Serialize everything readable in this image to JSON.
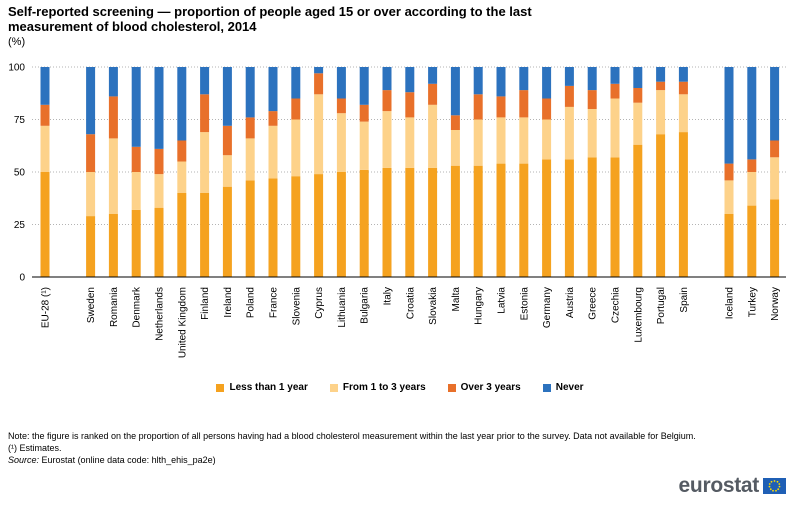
{
  "header": {
    "title": "Self-reported screening — proportion of people aged 15 or over according to the last measurement of blood cholesterol, 2014",
    "unit": "(%)"
  },
  "colors": {
    "less_than_1_year": "#f5a21f",
    "from_1_to_3_years": "#fdd28a",
    "over_3_years": "#e8702a",
    "never": "#2c72be",
    "grid": "#b3b3b3",
    "axis": "#000000",
    "logo_text": "#555b63",
    "logo_flag": "#1f5fb5"
  },
  "chart_data": {
    "type": "bar",
    "stacked": true,
    "title": "Self-reported screening — proportion of people aged 15 or over according to the last measurement of blood cholesterol, 2014",
    "ylabel": "(%)",
    "xlabel": "",
    "ylim": [
      0,
      100
    ],
    "yticks": [
      0,
      25,
      50,
      75,
      100
    ],
    "grid": true,
    "legend_position": "bottom-center",
    "groups": [
      [
        0
      ],
      [
        1,
        27
      ],
      [
        28,
        30
      ]
    ],
    "categories": [
      "EU-28 (¹)",
      "Sweden",
      "Romania",
      "Denmark",
      "Netherlands",
      "United Kingdom",
      "Finland",
      "Ireland",
      "Poland",
      "France",
      "Slovenia",
      "Cyprus",
      "Lithuania",
      "Bulgaria",
      "Italy",
      "Croatia",
      "Slovakia",
      "Malta",
      "Hungary",
      "Latvia",
      "Estonia",
      "Germany",
      "Austria",
      "Greece",
      "Czechia",
      "Luxembourg",
      "Portugal",
      "Spain",
      "Iceland",
      "Turkey",
      "Norway"
    ],
    "series": [
      {
        "name": "Less than 1 year",
        "values": [
          50,
          29,
          30,
          32,
          33,
          40,
          40,
          43,
          46,
          47,
          48,
          49,
          50,
          51,
          52,
          52,
          52,
          53,
          53,
          54,
          54,
          56,
          56,
          57,
          57,
          63,
          68,
          69,
          30,
          34,
          37
        ]
      },
      {
        "name": "From 1 to 3 years",
        "values": [
          22,
          21,
          36,
          18,
          16,
          15,
          29,
          15,
          20,
          25,
          27,
          38,
          28,
          23,
          27,
          24,
          30,
          17,
          22,
          22,
          22,
          19,
          25,
          23,
          28,
          20,
          21,
          18,
          16,
          16,
          20
        ]
      },
      {
        "name": "Over 3 years",
        "values": [
          10,
          18,
          20,
          12,
          12,
          10,
          18,
          14,
          10,
          7,
          10,
          10,
          7,
          8,
          10,
          12,
          10,
          7,
          12,
          10,
          13,
          10,
          10,
          9,
          7,
          7,
          4,
          6,
          8,
          6,
          8
        ]
      },
      {
        "name": "Never",
        "values": [
          18,
          32,
          14,
          38,
          39,
          35,
          13,
          28,
          24,
          21,
          15,
          3,
          15,
          18,
          11,
          12,
          8,
          23,
          13,
          14,
          11,
          15,
          9,
          11,
          8,
          10,
          7,
          7,
          46,
          44,
          35
        ]
      }
    ]
  },
  "legend": {
    "items": [
      {
        "label": "Less than 1 year"
      },
      {
        "label": "From 1 to 3 years"
      },
      {
        "label": "Over 3 years"
      },
      {
        "label": "Never"
      }
    ]
  },
  "footer": {
    "note": "Note: the figure is ranked on the proportion of all persons having had a blood cholesterol measurement within the last year prior to the survey. Data not available for Belgium.",
    "estimates": "(¹) Estimates.",
    "source_label": "Source:",
    "source_text": "Eurostat (online data code: hlth_ehis_pa2e)"
  },
  "logo": {
    "text": "eurostat",
    "flag_icon": "eu-flag-icon"
  }
}
